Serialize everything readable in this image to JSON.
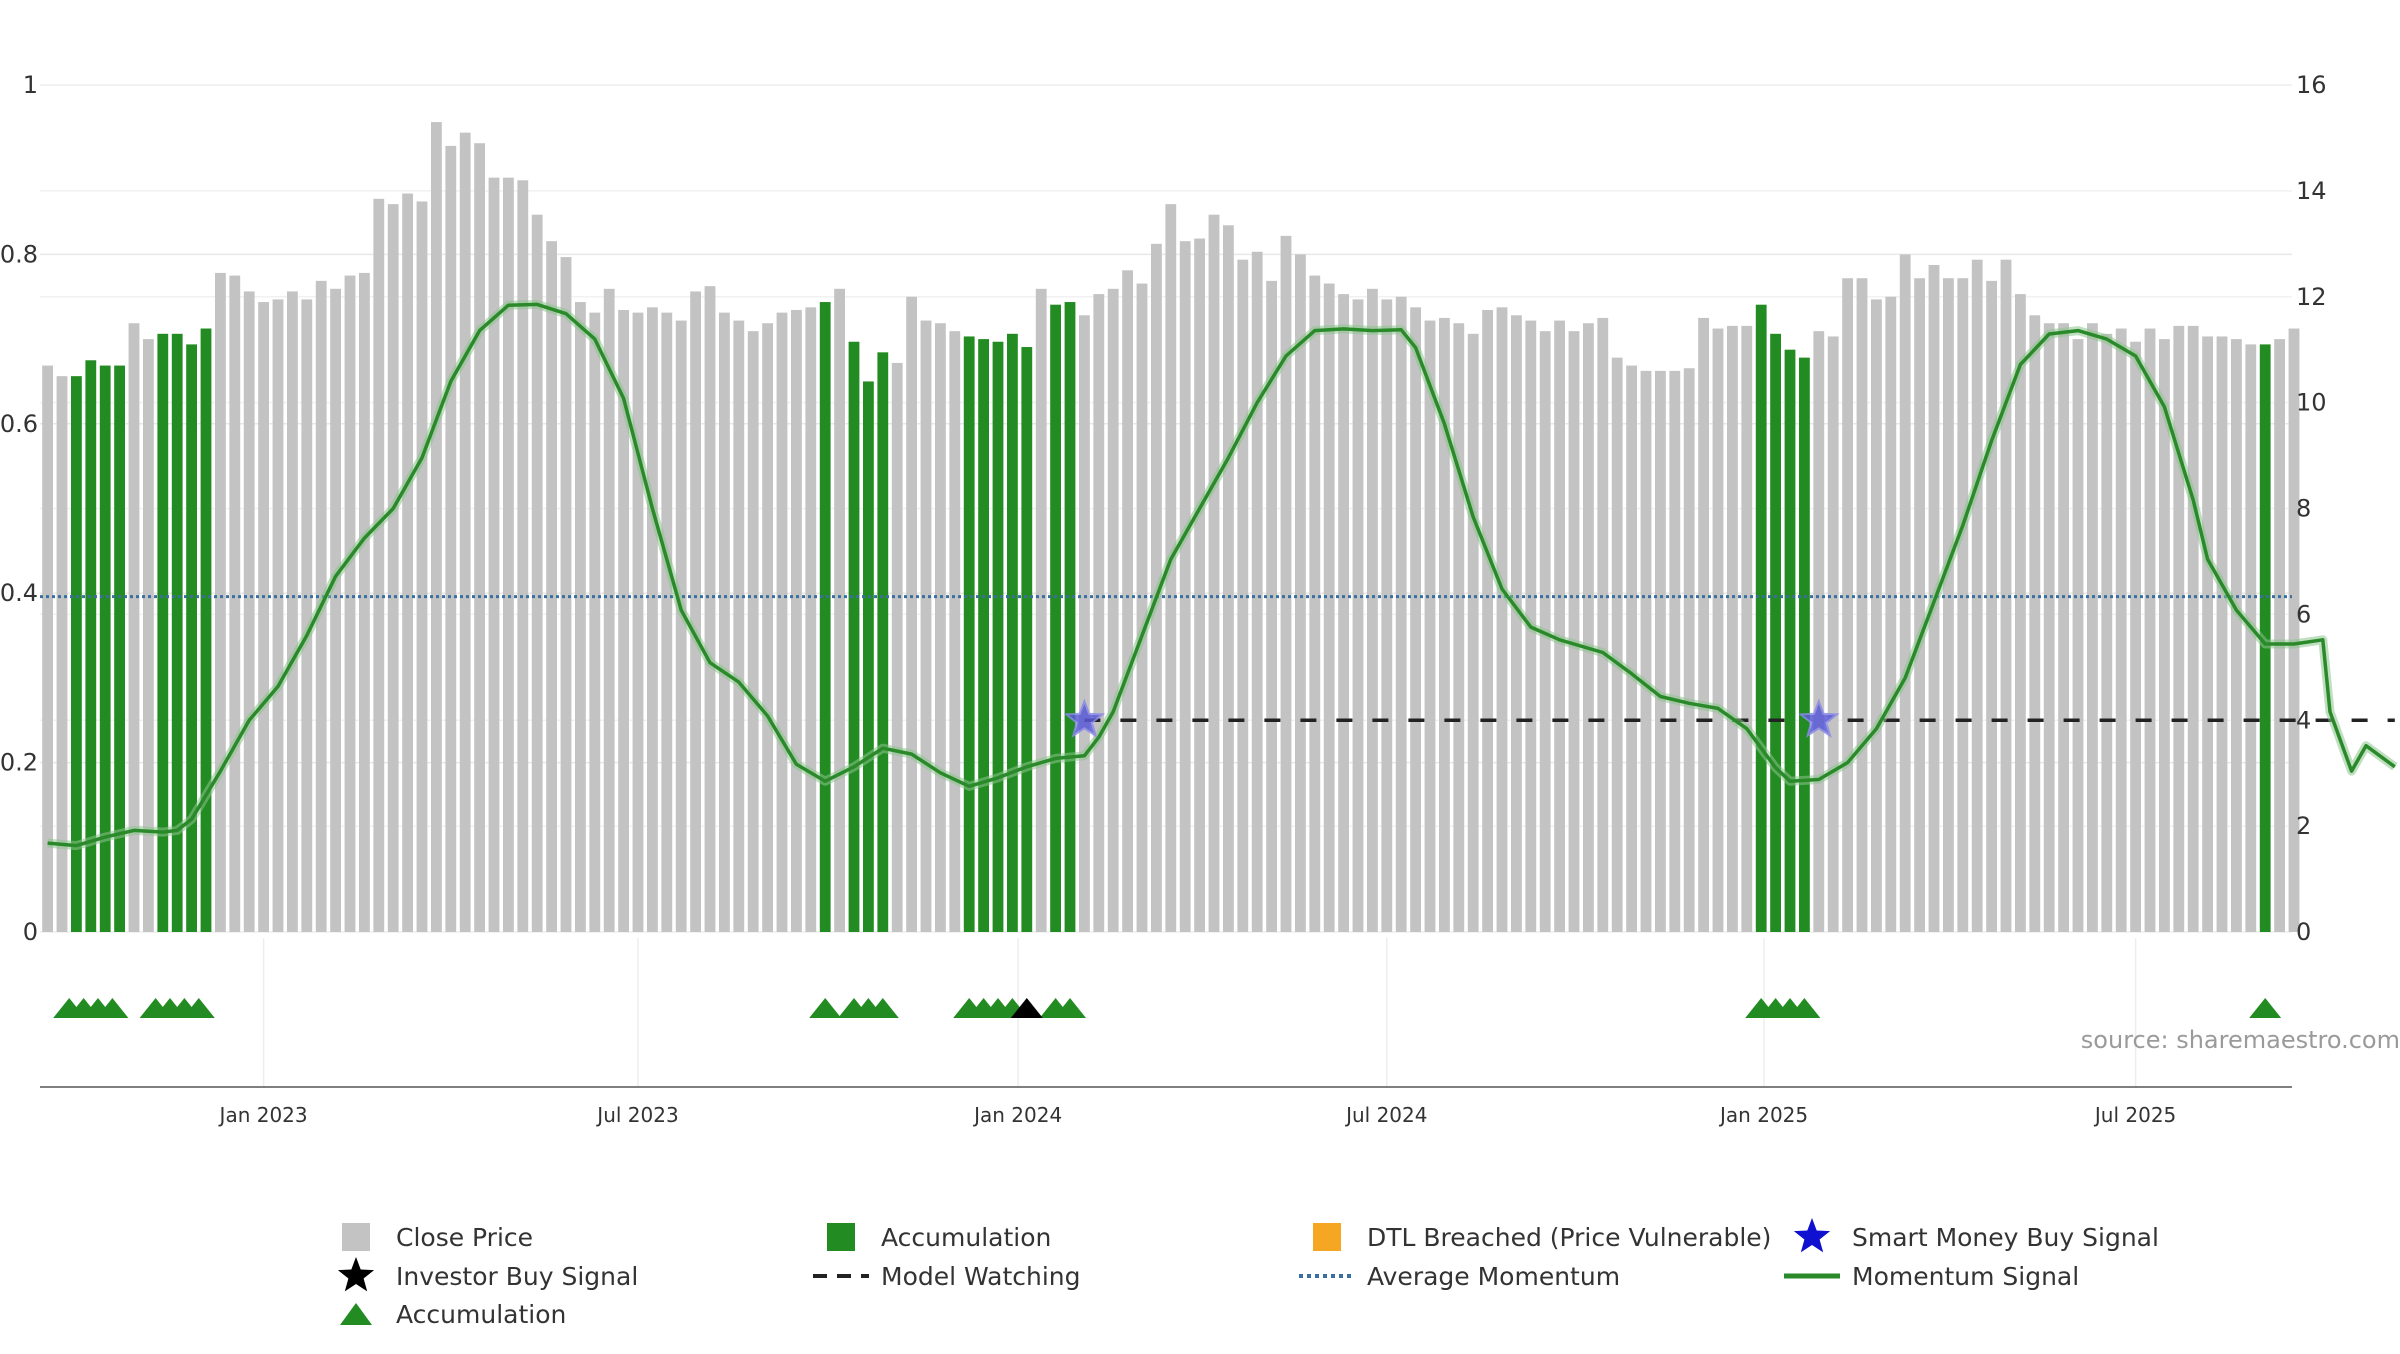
{
  "source_note": "source: sharemaestro.com",
  "colors": {
    "close_price": "#c3c3c3",
    "accumulation": "#228b22",
    "dtl": "#f5a623",
    "smart_money": "#1010d0",
    "investor": "#000000",
    "momentum": "#2a8a2a",
    "avg_momentum": "#3a6fa0",
    "model_watching": "#222222",
    "grid": "#e8e8e8"
  },
  "legend": [
    {
      "label": "Close Price",
      "kind": "square",
      "color": "#c3c3c3"
    },
    {
      "label": "Accumulation",
      "kind": "square",
      "color": "#228b22"
    },
    {
      "label": "DTL Breached (Price Vulnerable)",
      "kind": "square",
      "color": "#f5a623"
    },
    {
      "label": "Smart Money Buy Signal",
      "kind": "star",
      "color": "#1010d0"
    },
    {
      "label": "Investor Buy Signal",
      "kind": "star",
      "color": "#000000"
    },
    {
      "label": "Model Watching",
      "kind": "dash",
      "color": "#222222"
    },
    {
      "label": "Average Momentum",
      "kind": "dot",
      "color": "#3a6fa0"
    },
    {
      "label": "Momentum Signal",
      "kind": "line",
      "color": "#2a8a2a"
    },
    {
      "label": "Accumulation",
      "kind": "triangle",
      "color": "#228b22"
    }
  ],
  "chart_data": {
    "type": "bar",
    "title": "",
    "x_tick_labels": [
      {
        "label": "Jan 2023",
        "index": 15
      },
      {
        "label": "Jul 2023",
        "index": 41
      },
      {
        "label": "Jan 2024",
        "index": 67.4
      },
      {
        "label": "Jul 2024",
        "index": 93
      },
      {
        "label": "Jan 2025",
        "index": 119.2
      },
      {
        "label": "Jul 2025",
        "index": 145
      }
    ],
    "left_axis": {
      "ylim": [
        0,
        1
      ],
      "ticks": [
        "0",
        "0.2",
        "0.4",
        "0.6",
        "0.8",
        "1"
      ],
      "tick_values": [
        0,
        0.2,
        0.4,
        0.6,
        0.8,
        1
      ]
    },
    "right_axis": {
      "ylim": [
        0,
        16
      ],
      "ticks": [
        "0",
        "2",
        "4",
        "6",
        "8",
        "10",
        "12",
        "14",
        "16"
      ],
      "tick_values": [
        0,
        2,
        4,
        6,
        8,
        10,
        12,
        14,
        16
      ]
    },
    "close_price": [
      10.7,
      10.5,
      10.5,
      10.8,
      10.7,
      10.7,
      11.5,
      11.2,
      11.3,
      11.3,
      11.1,
      11.4,
      12.45,
      12.4,
      12.1,
      11.9,
      11.95,
      12.1,
      11.95,
      12.3,
      12.15,
      12.4,
      12.45,
      13.85,
      13.75,
      13.95,
      13.8,
      15.3,
      14.85,
      15.1,
      14.9,
      14.25,
      14.25,
      14.2,
      13.55,
      13.05,
      12.75,
      11.9,
      11.7,
      12.15,
      11.75,
      11.7,
      11.8,
      11.7,
      11.55,
      12.1,
      12.2,
      11.7,
      11.55,
      11.35,
      11.5,
      11.7,
      11.75,
      11.8,
      11.9,
      12.15,
      11.15,
      10.4,
      10.95,
      10.75,
      12.0,
      11.55,
      11.5,
      11.35,
      11.25,
      11.2,
      11.15,
      11.3,
      11.05,
      12.15,
      11.85,
      11.9,
      11.65,
      12.05,
      12.15,
      12.5,
      12.25,
      13.0,
      13.75,
      13.05,
      13.1,
      13.55,
      13.35,
      12.7,
      12.85,
      12.3,
      13.15,
      12.8,
      12.4,
      12.25,
      12.05,
      11.95,
      12.15,
      11.95,
      12.0,
      11.8,
      11.55,
      11.6,
      11.5,
      11.3,
      11.75,
      11.8,
      11.65,
      11.55,
      11.35,
      11.55,
      11.35,
      11.5,
      11.6,
      10.85,
      10.7,
      10.6,
      10.6,
      10.6,
      10.65,
      11.6,
      11.4,
      11.45,
      11.45,
      11.85,
      11.3,
      11.0,
      10.85,
      11.35,
      11.25,
      12.35,
      12.35,
      11.95,
      12.0,
      12.8,
      12.35,
      12.6,
      12.35,
      12.35,
      12.7,
      12.3,
      12.7,
      12.05,
      11.65,
      11.5,
      11.5,
      11.2,
      11.5,
      11.3,
      11.4,
      11.15,
      11.4,
      11.2,
      11.45,
      11.45,
      11.25,
      11.25,
      11.2,
      11.1,
      11.1,
      11.2,
      11.4
    ],
    "accumulation_indices": [
      2,
      3,
      4,
      5,
      8,
      9,
      10,
      11,
      54,
      56,
      57,
      58,
      64,
      65,
      66,
      67,
      68,
      70,
      71,
      119,
      120,
      121,
      122,
      154
    ],
    "momentum_signal": [
      [
        0,
        0.105
      ],
      [
        2,
        0.102
      ],
      [
        4,
        0.112
      ],
      [
        6,
        0.12
      ],
      [
        8,
        0.118
      ],
      [
        9,
        0.12
      ],
      [
        10,
        0.133
      ],
      [
        12,
        0.19
      ],
      [
        14,
        0.25
      ],
      [
        16,
        0.29
      ],
      [
        18,
        0.35
      ],
      [
        20,
        0.42
      ],
      [
        22,
        0.465
      ],
      [
        24,
        0.5
      ],
      [
        26,
        0.56
      ],
      [
        28,
        0.65
      ],
      [
        30,
        0.71
      ],
      [
        32,
        0.74
      ],
      [
        34,
        0.741
      ],
      [
        36,
        0.73
      ],
      [
        38,
        0.7
      ],
      [
        40,
        0.63
      ],
      [
        42,
        0.5
      ],
      [
        44,
        0.38
      ],
      [
        46,
        0.318
      ],
      [
        48,
        0.295
      ],
      [
        50,
        0.255
      ],
      [
        52,
        0.198
      ],
      [
        54,
        0.178
      ],
      [
        56,
        0.195
      ],
      [
        58,
        0.217
      ],
      [
        60,
        0.21
      ],
      [
        62,
        0.188
      ],
      [
        64,
        0.172
      ],
      [
        66,
        0.182
      ],
      [
        68,
        0.195
      ],
      [
        70,
        0.205
      ],
      [
        72,
        0.208
      ],
      [
        73,
        0.23
      ],
      [
        74,
        0.26
      ],
      [
        76,
        0.35
      ],
      [
        78,
        0.44
      ],
      [
        80,
        0.5
      ],
      [
        82,
        0.56
      ],
      [
        84,
        0.625
      ],
      [
        86,
        0.68
      ],
      [
        88,
        0.71
      ],
      [
        90,
        0.712
      ],
      [
        92,
        0.71
      ],
      [
        94,
        0.711
      ],
      [
        95,
        0.69
      ],
      [
        97,
        0.6
      ],
      [
        99,
        0.49
      ],
      [
        101,
        0.405
      ],
      [
        103,
        0.36
      ],
      [
        105,
        0.345
      ],
      [
        108,
        0.33
      ],
      [
        110,
        0.305
      ],
      [
        112,
        0.278
      ],
      [
        114,
        0.27
      ],
      [
        116,
        0.264
      ],
      [
        118,
        0.24
      ],
      [
        120,
        0.194
      ],
      [
        121,
        0.178
      ],
      [
        123,
        0.18
      ],
      [
        125,
        0.2
      ],
      [
        127,
        0.24
      ],
      [
        129,
        0.3
      ],
      [
        131,
        0.39
      ],
      [
        133,
        0.48
      ],
      [
        135,
        0.58
      ],
      [
        137,
        0.67
      ],
      [
        139,
        0.706
      ],
      [
        141,
        0.71
      ],
      [
        143,
        0.7
      ],
      [
        145,
        0.68
      ],
      [
        147,
        0.62
      ],
      [
        149,
        0.51
      ],
      [
        150,
        0.44
      ],
      [
        152,
        0.38
      ],
      [
        154,
        0.34
      ],
      [
        156,
        0.34
      ],
      [
        158,
        0.345
      ],
      [
        158.5,
        0.26
      ],
      [
        160,
        0.19
      ],
      [
        161,
        0.22
      ],
      [
        163,
        0.195
      ]
    ],
    "average_momentum": 0.396,
    "model_watching": {
      "level": 0.25,
      "segments": [
        [
          72,
          121
        ],
        [
          125,
          163
        ]
      ]
    },
    "smart_money_signals": [
      {
        "index": 72,
        "value": 0.25
      },
      {
        "index": 123,
        "value": 0.25
      }
    ],
    "accumulation_triangles": [
      1.5,
      2.5,
      3.5,
      4.5,
      7.5,
      8.5,
      9.5,
      10.5,
      54,
      56,
      57,
      58,
      64,
      65,
      66,
      67,
      70,
      71,
      119,
      120,
      121,
      122,
      154
    ],
    "investor_buy_triangles": [
      68
    ]
  }
}
